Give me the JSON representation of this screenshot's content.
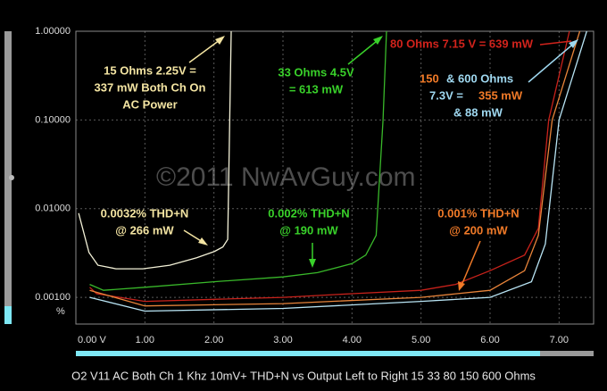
{
  "chart_data": {
    "type": "line",
    "title": "O2 V11 AC Both Ch 1 Khz 10mV+ THD+N vs Output Left to Right 15 33 80 150 600 Ohms",
    "watermark": "©2011 NwAvGuy.com",
    "y_unit": "%",
    "yscale": "log",
    "grid": true,
    "xlim": [
      0,
      7.5
    ],
    "ylim": [
      0.0005,
      1
    ],
    "xticks": [
      {
        "value": 0,
        "label": "0.00 V"
      },
      {
        "value": 1,
        "label": "1.00"
      },
      {
        "value": 2,
        "label": "2.00"
      },
      {
        "value": 3,
        "label": "3.00"
      },
      {
        "value": 4,
        "label": "4.00"
      },
      {
        "value": 5,
        "label": "5.00"
      },
      {
        "value": 6,
        "label": "6.00"
      },
      {
        "value": 7,
        "label": "7.00"
      }
    ],
    "yticks": [
      {
        "value": 1,
        "label": "1.00000"
      },
      {
        "value": 0.1,
        "label": "0.10000"
      },
      {
        "value": 0.01,
        "label": "0.01000"
      },
      {
        "value": 0.001,
        "label": "0.00100"
      }
    ],
    "series": [
      {
        "name": "15 Ohms",
        "color": "#f4f2d8",
        "x": [
          0.04,
          0.19,
          0.32,
          0.58,
          0.97,
          1.36,
          1.75,
          2.01,
          2.13,
          2.2,
          2.25
        ],
        "values": [
          0.0089,
          0.0032,
          0.0023,
          0.0021,
          0.0021,
          0.0023,
          0.0028,
          0.0033,
          0.0037,
          0.0045,
          1
        ]
      },
      {
        "name": "33 Ohms",
        "color": "#39b82a",
        "x": [
          0.2,
          0.4,
          1.0,
          2.0,
          3.0,
          3.5,
          4.0,
          4.2,
          4.35,
          4.45,
          4.5
        ],
        "values": [
          0.0014,
          0.0012,
          0.0013,
          0.0015,
          0.0017,
          0.0019,
          0.0024,
          0.003,
          0.005,
          0.1,
          1
        ]
      },
      {
        "name": "80 Ohms",
        "color": "#c8221b",
        "x": [
          0.2,
          0.3,
          1.0,
          2.0,
          3.0,
          4.0,
          5.0,
          5.5,
          6.0,
          6.5,
          6.7,
          6.85,
          7.15
        ],
        "values": [
          0.0013,
          0.0011,
          0.0009,
          0.00095,
          0.001,
          0.0011,
          0.0012,
          0.0014,
          0.002,
          0.003,
          0.006,
          0.1,
          1
        ]
      },
      {
        "name": "150 Ohms",
        "color": "#e8843a",
        "x": [
          0.2,
          1.0,
          3.0,
          5.0,
          6.0,
          6.5,
          6.7,
          6.9,
          7.3
        ],
        "values": [
          0.0012,
          0.0008,
          0.00085,
          0.001,
          0.0012,
          0.002,
          0.005,
          0.1,
          1
        ]
      },
      {
        "name": "600 Ohms",
        "color": "#b8e4f4",
        "x": [
          0.2,
          1.0,
          3.0,
          5.0,
          6.0,
          6.6,
          6.8,
          7.0,
          7.4
        ],
        "values": [
          0.001,
          0.0007,
          0.00075,
          0.0009,
          0.001,
          0.0015,
          0.004,
          0.1,
          1
        ]
      }
    ],
    "annotations": [
      "15 Ohms 2.25V =",
      "337 mW Both Ch On",
      "AC Power",
      "33 Ohms 4.5V",
      "= 613 mW",
      "80 Ohms 7.15 V = 639 mW",
      "150",
      "& 600 Ohms",
      "7.3V =",
      "355 mW",
      "& 88 mW",
      "0.0032% THD+N",
      "@ 266 mW",
      "0.002% THD+N",
      "@ 190 mW",
      "0.001% THD+N",
      "@ 200 mW"
    ]
  }
}
